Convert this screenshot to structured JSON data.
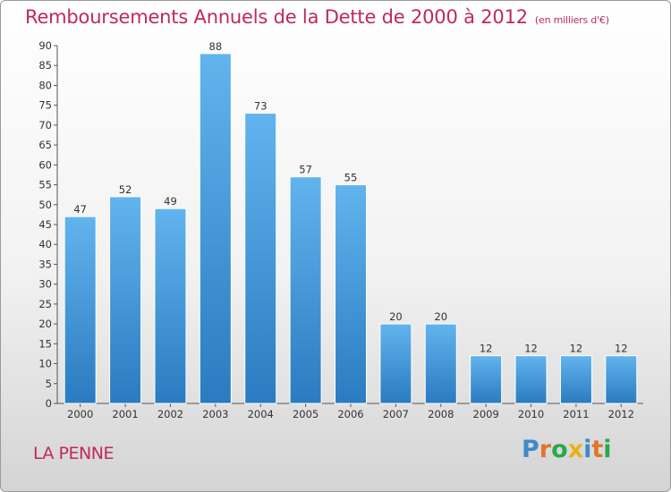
{
  "chart_data": {
    "type": "bar",
    "title": "Remboursements Annuels de la Dette de 2000 à 2012",
    "subtitle": "(en milliers d'€)",
    "categories": [
      "2000",
      "2001",
      "2002",
      "2003",
      "2004",
      "2005",
      "2006",
      "2007",
      "2008",
      "2009",
      "2010",
      "2011",
      "2012"
    ],
    "values": [
      47,
      52,
      49,
      88,
      73,
      57,
      55,
      20,
      20,
      12,
      12,
      12,
      12
    ],
    "ylim": [
      0,
      90
    ],
    "yticks": [
      0,
      5,
      10,
      15,
      20,
      25,
      30,
      35,
      40,
      45,
      50,
      55,
      60,
      65,
      70,
      75,
      80,
      85,
      90
    ],
    "grid": false,
    "bar_color": "#3f97d9",
    "bar_color_top": "#62b4ee",
    "bar_color_bottom": "#2a7bc0"
  },
  "footer": {
    "city": "LA PENNE",
    "logo_letters": [
      {
        "ch": "P",
        "color": "#3f89c8"
      },
      {
        "ch": "r",
        "color": "#e0762c"
      },
      {
        "ch": "o",
        "color": "#2aa84a"
      },
      {
        "ch": "x",
        "color": "#e6b317"
      },
      {
        "ch": "i",
        "color": "#3f89c8"
      },
      {
        "ch": "t",
        "color": "#e0762c"
      },
      {
        "ch": "i",
        "color": "#2aa84a"
      }
    ]
  }
}
